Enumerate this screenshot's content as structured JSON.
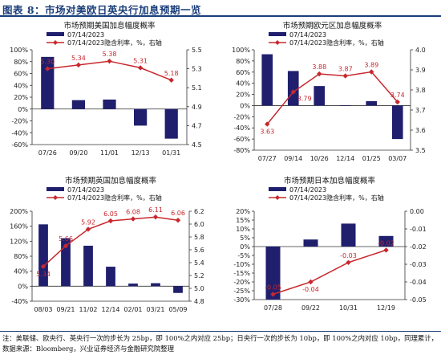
{
  "header": {
    "title": "图表 8：市场对美欧日英央行加息预期一览"
  },
  "footer": {
    "note1": "注：美联储、欧央行、英央行一次的步长为 25bp，即 100%之内对应 25bp；日央行一次的步长为 10bp，即 100%之内对应 10bp，同理累计，",
    "note2": "数据来源：Bloomberg，兴业证券经济与金融研究院整理"
  },
  "colors": {
    "bar": "#1f1f6e",
    "line": "#c8282d",
    "label": "#c8282d",
    "axis": "#333333"
  },
  "chart_data": [
    {
      "type": "bar+line",
      "title": "市场预期美国加息幅度概率",
      "bar_legend": "07/14/2023",
      "line_legend": "07/14/2023隐含利率，%，右轴",
      "categories": [
        "07/26",
        "09/20",
        "11/01",
        "12/13",
        "01/31"
      ],
      "bar_values": [
        88,
        15,
        16,
        -28,
        -50
      ],
      "line_values": [
        5.3,
        5.34,
        5.38,
        5.31,
        5.18
      ],
      "line_labels": [
        "5.30",
        "5.34",
        "5.38",
        "5.31",
        "5.18"
      ],
      "label_pos": [
        "above",
        "above",
        "above",
        "above",
        "above"
      ],
      "left_ylim": [
        -60,
        100
      ],
      "left_ticks": [
        100,
        80,
        60,
        40,
        20,
        0,
        -20,
        -40,
        -60
      ],
      "left_tick_labels": [
        "100%",
        "80%",
        "60%",
        "40%",
        "20%",
        "0%",
        "-20%",
        "-40%",
        "-60%"
      ],
      "right_ylim": [
        4.5,
        5.5
      ],
      "right_ticks": [
        5.5,
        5.3,
        5.1,
        4.9,
        4.7,
        4.5
      ],
      "right_tick_labels": [
        "5.5",
        "5.3",
        "5.1",
        "4.9",
        "4.7",
        "4.5"
      ]
    },
    {
      "type": "bar+line",
      "title": "市场预期欧元区加息幅度概率",
      "bar_legend": "07/14/2023",
      "line_legend": "07/14/2023隐含利率，%，右轴",
      "categories": [
        "07/27",
        "09/14",
        "10/26",
        "12/14",
        "01/25",
        "03/07"
      ],
      "bar_values": [
        92,
        62,
        35,
        0,
        8,
        -60
      ],
      "line_values": [
        3.63,
        3.79,
        3.88,
        3.87,
        3.89,
        3.74
      ],
      "line_labels": [
        "3.63",
        "3.79",
        "3.88",
        "3.87",
        "3.89",
        "3.74"
      ],
      "label_pos": [
        "below",
        "right",
        "above",
        "above",
        "above",
        "above"
      ],
      "left_ylim": [
        -80,
        100
      ],
      "left_ticks": [
        100,
        80,
        60,
        40,
        20,
        0,
        -20,
        -40,
        -60,
        -80
      ],
      "left_tick_labels": [
        "100%",
        "80%",
        "60%",
        "40%",
        "20%",
        "0%",
        "-20%",
        "-40%",
        "-60%",
        "-80%"
      ],
      "right_ylim": [
        3.5,
        4.0
      ],
      "right_ticks": [
        4.0,
        3.9,
        3.8,
        3.7,
        3.6,
        3.5
      ],
      "right_tick_labels": [
        "4.0",
        "3.9",
        "3.8",
        "3.7",
        "3.6",
        "3.5"
      ]
    },
    {
      "type": "bar+line",
      "title": "市场预期英国加息幅度概率",
      "bar_legend": "07/14/2023",
      "line_legend": "07/14/2023隐含利率，%，右轴",
      "categories": [
        "08/03",
        "09/21",
        "11/02",
        "12/14",
        "02/01",
        "03/21",
        "05/09"
      ],
      "bar_values": [
        165,
        128,
        108,
        52,
        7,
        8,
        -18
      ],
      "line_values": [
        5.34,
        5.66,
        5.92,
        6.05,
        6.08,
        6.11,
        6.06
      ],
      "line_labels": [
        "5.34",
        "5.66",
        "5.92",
        "6.05",
        "6.08",
        "6.11",
        "6.06"
      ],
      "label_pos": [
        "below",
        "above",
        "above",
        "above",
        "above",
        "above",
        "above"
      ],
      "left_ylim": [
        -40,
        200
      ],
      "left_ticks": [
        200,
        160,
        120,
        80,
        40,
        0,
        -40
      ],
      "left_tick_labels": [
        "200%",
        "160%",
        "120%",
        "80%",
        "40%",
        "0%",
        "-40%"
      ],
      "right_ylim": [
        4.8,
        6.2
      ],
      "right_ticks": [
        6.2,
        6.0,
        5.8,
        5.6,
        5.4,
        5.2,
        5.0,
        4.8
      ],
      "right_tick_labels": [
        "6.2",
        "6.0",
        "5.8",
        "5.6",
        "5.4",
        "5.2",
        "5.0",
        "4.8"
      ]
    },
    {
      "type": "bar+line",
      "title": "市场预期日本加息幅度概率",
      "bar_legend": "07/14/2023",
      "line_legend": "07/14/2023隐含利率，%，右轴",
      "categories": [
        "07/28",
        "09/22",
        "10/31",
        "12/19"
      ],
      "bar_values": [
        -30,
        4,
        13,
        6
      ],
      "line_values": [
        -0.047,
        -0.04,
        -0.029,
        -0.022
      ],
      "line_labels": [
        "-0.05",
        "-0.04",
        "-0.03",
        "-0.02"
      ],
      "label_pos": [
        "above",
        "below",
        "above",
        "above"
      ],
      "left_ylim": [
        -30,
        20
      ],
      "left_ticks": [
        20,
        15,
        10,
        5,
        0,
        -5,
        -10,
        -15,
        -20,
        -25,
        -30
      ],
      "left_tick_labels": [
        "20%",
        "15%",
        "10%",
        "5%",
        "0%",
        "-5%",
        "-10%",
        "-15%",
        "-20%",
        "-25%",
        "-30%"
      ],
      "right_ylim": [
        -0.05,
        0.0
      ],
      "right_ticks": [
        0.0,
        -0.01,
        -0.02,
        -0.03,
        -0.04,
        -0.05
      ],
      "right_tick_labels": [
        "0.00",
        "-0.01",
        "-0.02",
        "-0.03",
        "-0.04",
        "-0.05"
      ]
    }
  ]
}
